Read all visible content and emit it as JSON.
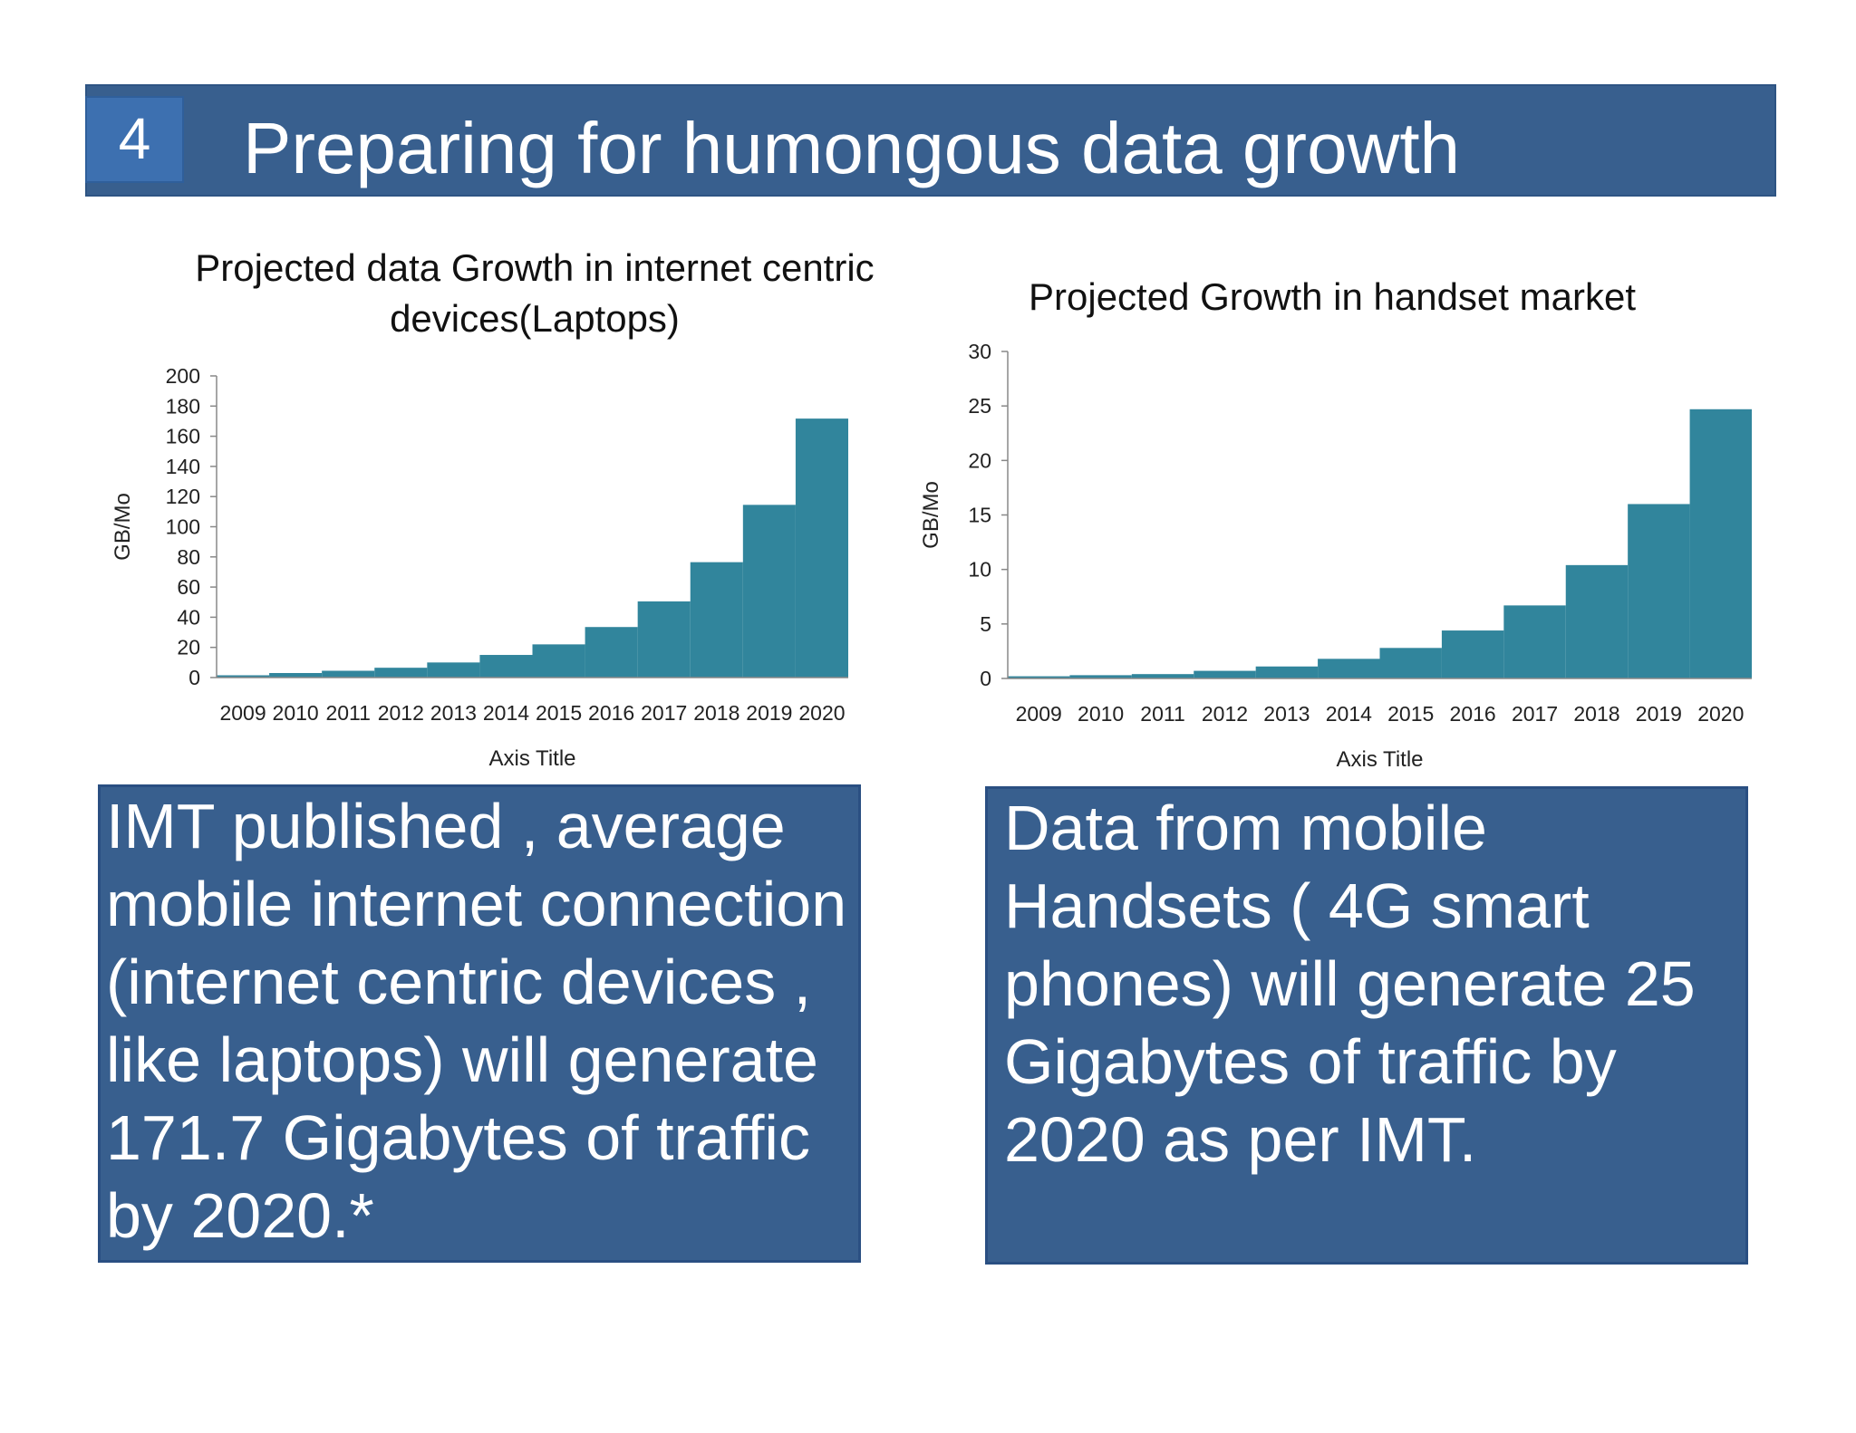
{
  "header": {
    "slide_number": "4",
    "title": "Preparing for humongous data growth",
    "bar_color": "#385f8e"
  },
  "chart_data": [
    {
      "type": "bar",
      "title": "Projected data Growth in internet centric devices(Laptops)",
      "xlabel": "Axis Title",
      "ylabel": "GB/Mo",
      "categories": [
        "2009",
        "2010",
        "2011",
        "2012",
        "2013",
        "2014",
        "2015",
        "2016",
        "2017",
        "2018",
        "2019",
        "2020"
      ],
      "values": [
        1.5,
        3,
        4.5,
        6.5,
        10,
        15,
        22,
        33.5,
        50.5,
        76.5,
        114.5,
        171.7
      ],
      "ylim": [
        0,
        200
      ],
      "yticks": [
        "0",
        "20",
        "40",
        "60",
        "80",
        "100",
        "120",
        "140",
        "160",
        "180",
        "200"
      ],
      "bar_color": "#31859c",
      "grid": false,
      "legend": "none"
    },
    {
      "type": "bar",
      "title": "Projected Growth in handset market",
      "xlabel": "Axis Title",
      "ylabel": "GB/Mo",
      "categories": [
        "2009",
        "2010",
        "2011",
        "2012",
        "2013",
        "2014",
        "2015",
        "2016",
        "2017",
        "2018",
        "2019",
        "2020"
      ],
      "values": [
        0.2,
        0.3,
        0.4,
        0.7,
        1.1,
        1.8,
        2.8,
        4.4,
        6.7,
        10.4,
        16,
        24.7
      ],
      "ylim": [
        0,
        30
      ],
      "yticks": [
        "0",
        "5",
        "10",
        "15",
        "20",
        "25",
        "30"
      ],
      "bar_color": "#31859c",
      "grid": false,
      "legend": "none"
    }
  ],
  "callouts": [
    {
      "text": "IMT published , average mobile internet connection (internet centric devices , like laptops) will generate 171.7 Gigabytes of traffic by 2020.*"
    },
    {
      "text": "Data from mobile Handsets ( 4G smart phones) will generate 25 Gigabytes of traffic by 2020 as per IMT."
    }
  ]
}
